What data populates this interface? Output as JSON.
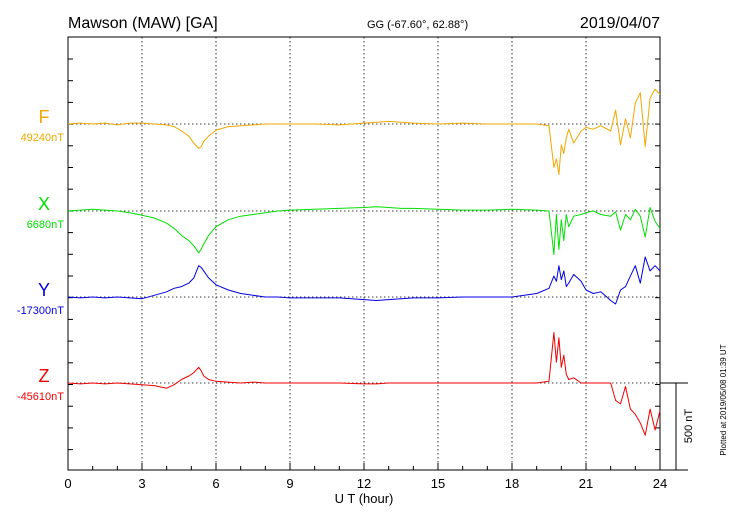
{
  "header": {
    "station": "Mawson (MAW)  [GA]",
    "coords": "GG (-67.60°,  62.88°)",
    "date": "2019/04/07"
  },
  "footer": {
    "plotted_at": "Plotted at 2019/05/08 01:39 UT"
  },
  "chart_data": {
    "type": "line",
    "title": "Mawson (MAW)  [GA]",
    "xlabel": "U T (hour)",
    "xlim": [
      0,
      24
    ],
    "x_ticks": [
      "0",
      "3",
      "6",
      "9",
      "12",
      "15",
      "18",
      "21",
      "24"
    ],
    "grid": true,
    "scale_bar_label": "500 nT",
    "scale_bar_nT": 500,
    "series": [
      {
        "name": "F",
        "baseline_label": "49240nT",
        "baseline_nT": 49240,
        "color": "#f0a800",
        "x": [
          0,
          0.5,
          1,
          1.5,
          2,
          2.5,
          3,
          3.5,
          4,
          4.3,
          4.6,
          4.9,
          5.1,
          5.3,
          5.4,
          5.5,
          5.7,
          6,
          6.5,
          7,
          7.5,
          8,
          8.5,
          9,
          10,
          11,
          12,
          12.5,
          13,
          13.5,
          14,
          15,
          16,
          17,
          18,
          19,
          19.5,
          19.7,
          19.8,
          19.9,
          20,
          20.1,
          20.2,
          20.3,
          20.5,
          20.8,
          21,
          21.3,
          21.6,
          22,
          22.2,
          22.4,
          22.6,
          22.8,
          23,
          23.2,
          23.4,
          23.6,
          23.8,
          24
        ],
        "y": [
          0,
          5,
          0,
          5,
          -5,
          5,
          5,
          0,
          -5,
          -15,
          -40,
          -70,
          -110,
          -140,
          -130,
          -100,
          -70,
          -35,
          -15,
          -10,
          -5,
          0,
          0,
          0,
          0,
          -5,
          5,
          10,
          15,
          10,
          5,
          0,
          5,
          0,
          0,
          0,
          -10,
          -250,
          -200,
          -290,
          -120,
          -170,
          -80,
          -30,
          -110,
          -40,
          -20,
          -30,
          -10,
          -40,
          80,
          -120,
          30,
          -80,
          120,
          180,
          -130,
          150,
          200,
          170
        ]
      },
      {
        "name": "X",
        "baseline_label": "6680nT",
        "baseline_nT": 6680,
        "color": "#00e000",
        "x": [
          0,
          0.5,
          1,
          1.5,
          2,
          2.5,
          3,
          3.5,
          4,
          4.3,
          4.6,
          4.9,
          5.1,
          5.3,
          5.4,
          5.5,
          5.7,
          6,
          6.5,
          7,
          7.5,
          8,
          8.5,
          9,
          10,
          11,
          12,
          12.5,
          13,
          13.5,
          14,
          15,
          16,
          17,
          18,
          19,
          19.5,
          19.7,
          19.8,
          19.9,
          20,
          20.1,
          20.2,
          20.3,
          20.5,
          20.8,
          21,
          21.3,
          21.6,
          22,
          22.2,
          22.4,
          22.6,
          22.8,
          23,
          23.2,
          23.4,
          23.6,
          23.8,
          24
        ],
        "y": [
          0,
          5,
          10,
          5,
          0,
          -10,
          -25,
          -40,
          -70,
          -100,
          -140,
          -170,
          -200,
          -240,
          -220,
          -190,
          -140,
          -90,
          -50,
          -30,
          -20,
          -10,
          0,
          5,
          10,
          15,
          20,
          25,
          20,
          15,
          15,
          10,
          5,
          5,
          10,
          5,
          0,
          -250,
          -20,
          -220,
          -50,
          -170,
          -20,
          -90,
          -30,
          -20,
          -10,
          0,
          -20,
          -30,
          -5,
          -110,
          -20,
          -50,
          10,
          -30,
          -150,
          20,
          -60,
          -100
        ]
      },
      {
        "name": "Y",
        "baseline_label": "-17300nT",
        "baseline_nT": -17300,
        "color": "#0000e0",
        "x": [
          0,
          0.5,
          1,
          1.5,
          2,
          2.5,
          3,
          3.5,
          4,
          4.3,
          4.6,
          4.9,
          5.1,
          5.3,
          5.4,
          5.5,
          5.7,
          6,
          6.5,
          7,
          7.5,
          8,
          8.5,
          9,
          10,
          11,
          12,
          12.5,
          13,
          13.5,
          14,
          15,
          16,
          17,
          18,
          19,
          19.5,
          19.7,
          19.8,
          19.9,
          20,
          20.1,
          20.2,
          20.3,
          20.5,
          20.8,
          21,
          21.3,
          21.6,
          22,
          22.2,
          22.4,
          22.6,
          22.8,
          23,
          23.2,
          23.4,
          23.6,
          23.8,
          24
        ],
        "y": [
          0,
          -5,
          0,
          -5,
          0,
          -5,
          -10,
          10,
          30,
          50,
          60,
          80,
          110,
          180,
          170,
          150,
          110,
          70,
          40,
          20,
          10,
          0,
          0,
          -5,
          -5,
          -5,
          -15,
          -20,
          -15,
          -10,
          -5,
          -5,
          0,
          0,
          0,
          20,
          50,
          120,
          90,
          180,
          100,
          150,
          60,
          80,
          130,
          90,
          40,
          20,
          30,
          -20,
          -40,
          40,
          60,
          120,
          180,
          80,
          230,
          150,
          180,
          150
        ]
      },
      {
        "name": "Z",
        "baseline_label": "-45610nT",
        "baseline_nT": -45610,
        "color": "#f00000",
        "x": [
          0,
          0.5,
          1,
          1.5,
          2,
          2.5,
          3,
          3.5,
          4,
          4.3,
          4.6,
          4.9,
          5.1,
          5.3,
          5.4,
          5.5,
          5.7,
          6,
          6.5,
          7,
          7.5,
          8,
          8.5,
          9,
          10,
          11,
          12,
          12.5,
          13,
          13.5,
          14,
          15,
          16,
          17,
          18,
          19,
          19.5,
          19.7,
          19.8,
          19.9,
          20,
          20.1,
          20.2,
          20.3,
          20.5,
          20.8,
          21,
          21.3,
          21.6,
          22,
          22.2,
          22.4,
          22.6,
          22.8,
          23,
          23.2,
          23.4,
          23.6,
          23.8,
          24
        ],
        "y": [
          0,
          -5,
          0,
          -5,
          0,
          -5,
          -10,
          -15,
          -30,
          -10,
          20,
          40,
          60,
          90,
          70,
          40,
          20,
          10,
          5,
          0,
          5,
          0,
          0,
          0,
          0,
          0,
          -5,
          -5,
          0,
          0,
          0,
          0,
          0,
          0,
          0,
          0,
          10,
          290,
          120,
          260,
          90,
          160,
          50,
          20,
          30,
          0,
          0,
          0,
          0,
          0,
          -100,
          -120,
          -20,
          -150,
          -180,
          -230,
          -300,
          -150,
          -270,
          -160
        ]
      }
    ]
  }
}
